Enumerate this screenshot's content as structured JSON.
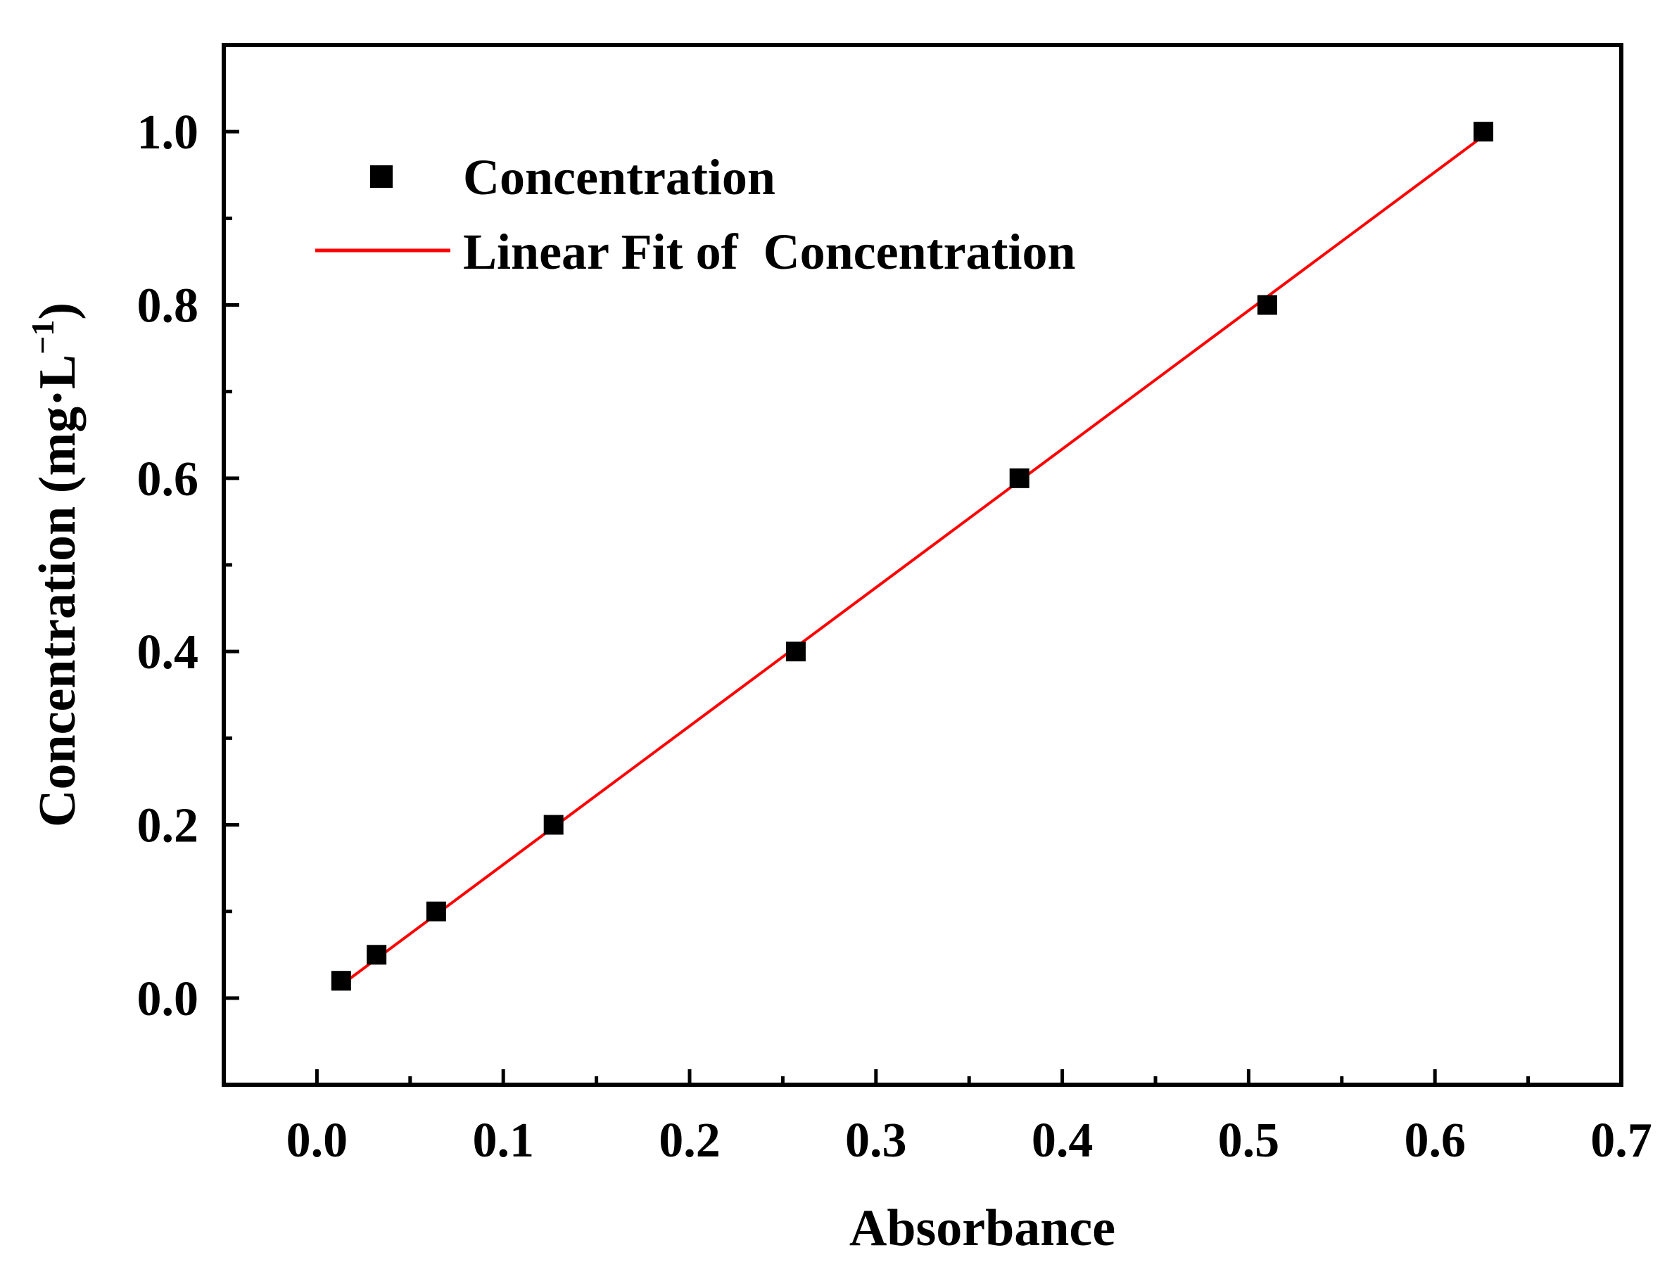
{
  "chart_data": {
    "type": "scatter",
    "title": "",
    "xlabel": "Absorbance",
    "ylabel": "Concentration (mg·L",
    "ylabel_superscript": "−1",
    "ylabel_suffix": ")",
    "xlim": [
      -0.05,
      0.7
    ],
    "ylim": [
      -0.1,
      1.1
    ],
    "xticks": [
      "0.0",
      "0.1",
      "0.2",
      "0.3",
      "0.4",
      "0.5",
      "0.6",
      "0.7"
    ],
    "yticks": [
      "0.0",
      "0.2",
      "0.4",
      "0.6",
      "0.8",
      "1.0"
    ],
    "grid": false,
    "legend_position": "top-left",
    "series": [
      {
        "name": "Concentration",
        "type": "scatter",
        "marker": "square",
        "color": "#000000",
        "x": [
          0.013,
          0.032,
          0.064,
          0.127,
          0.257,
          0.377,
          0.51,
          0.626
        ],
        "y": [
          0.02,
          0.05,
          0.1,
          0.2,
          0.4,
          0.6,
          0.8,
          1.0
        ]
      },
      {
        "name": "Linear Fit of  Concentration",
        "type": "line",
        "color": "#ff0000",
        "x": [
          0.013,
          0.626
        ],
        "y": [
          0.015,
          0.995
        ]
      }
    ]
  }
}
